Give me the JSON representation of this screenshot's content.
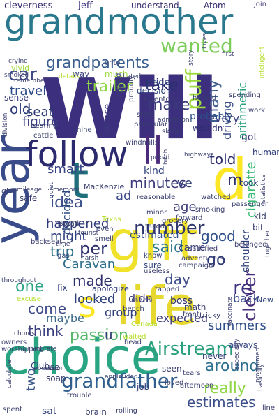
{
  "cloud": {
    "words": [
      {
        "text": "Will",
        "color": "#3b2f7e"
      },
      {
        "text": "grandmother",
        "color": "#2a788e"
      },
      {
        "text": "year",
        "color": "#3a4b8a"
      },
      {
        "text": "choice",
        "color": "#2aa583"
      },
      {
        "text": "life",
        "color": "#e6d82f"
      },
      {
        "text": "gift",
        "color": "#f0e12a"
      },
      {
        "text": "follow",
        "color": "#2c2a6e"
      },
      {
        "text": "t",
        "color": "#1f6f7a"
      },
      {
        "text": "d",
        "color": "#fde725"
      },
      {
        "text": "ll",
        "color": "#4b2a7b"
      },
      {
        "text": "s",
        "color": "#fde725"
      },
      {
        "text": "number",
        "color": "#30376f"
      },
      {
        "text": "grandfather",
        "color": "#2f5f8e"
      },
      {
        "text": "Airstream",
        "color": "#2aa07e"
      },
      {
        "text": "wanted",
        "color": "#7ccd5a"
      },
      {
        "text": "car",
        "color": "#3f4a85"
      },
      {
        "text": "grandparents",
        "color": "#3a5f8e"
      },
      {
        "text": "per",
        "color": "#2d2f6e"
      },
      {
        "text": "re",
        "color": "#3d3480"
      },
      {
        "text": "passion",
        "color": "#57b86a"
      },
      {
        "text": "idea",
        "color": "#3b4f8a"
      },
      {
        "text": "smart",
        "color": "#3a4586"
      },
      {
        "text": "made",
        "color": "#30306e"
      },
      {
        "text": "said",
        "color": "#2d7a8e"
      },
      {
        "text": "come",
        "color": "#3f4a8a"
      },
      {
        "text": "think",
        "color": "#3b3f7e"
      },
      {
        "text": "puff",
        "color": "#9bd93c"
      },
      {
        "text": "many",
        "color": "#3d5f8e"
      },
      {
        "text": "trailer",
        "color": "#8ed644"
      },
      {
        "text": "make",
        "color": "#3a3c7a"
      },
      {
        "text": "take",
        "color": "#2b2f6e"
      },
      {
        "text": "figure",
        "color": "#3b4080"
      },
      {
        "text": "one",
        "color": "#2aa583"
      },
      {
        "text": "minutes",
        "color": "#3b3a7a"
      },
      {
        "text": "cigarette",
        "color": "#3cbc75"
      },
      {
        "text": "clever",
        "color": "#472e7a"
      },
      {
        "text": "go",
        "color": "#2d3a78"
      },
      {
        "text": "two",
        "color": "#3d5a8a"
      },
      {
        "text": "really",
        "color": "#8ed644"
      },
      {
        "text": "around",
        "color": "#2d6f8e"
      },
      {
        "text": "summers",
        "color": "#2f4f8a"
      },
      {
        "text": "estimates",
        "color": "#3d4f8a"
      },
      {
        "text": "travel",
        "color": "#2d4a88"
      },
      {
        "text": "old",
        "color": "#2d3a78"
      },
      {
        "text": "seat",
        "color": "#2b3a70"
      },
      {
        "text": "happened",
        "color": "#2f3a78"
      },
      {
        "text": "might",
        "color": "#2f4080"
      },
      {
        "text": "trip",
        "color": "#2d6f8a"
      },
      {
        "text": "Caravan",
        "color": "#2f6f8e"
      },
      {
        "text": "looked",
        "color": "#2d3f7a"
      },
      {
        "text": "day",
        "color": "#3a4a88"
      },
      {
        "text": "told",
        "color": "#2d2f6e"
      },
      {
        "text": "age",
        "color": "#3b3a7a"
      },
      {
        "text": "good",
        "color": "#2f4f8a"
      },
      {
        "text": "driving",
        "color": "#3d5088"
      },
      {
        "text": "arithmetic",
        "color": "#2aa07e"
      },
      {
        "text": "every",
        "color": "#3d3f80"
      },
      {
        "text": "estimated",
        "color": "#2f4f8a"
      },
      {
        "text": "shoulder",
        "color": "#2d3f7a"
      },
      {
        "text": "decided",
        "color": "#2d4a80"
      },
      {
        "text": "didn",
        "color": "#3f3a7e"
      },
      {
        "text": "back",
        "color": "#3d4f8a"
      },
      {
        "text": "group",
        "color": "#2f3f7a"
      },
      {
        "text": "maybe",
        "color": "#3d6a8a"
      },
      {
        "text": "expected",
        "color": "#3b3a7a"
      },
      {
        "text": "cleverness",
        "color": "#3a2f6e"
      },
      {
        "text": "Jeff",
        "color": "#3b2f7a"
      },
      {
        "text": "understand",
        "color": "#3a2f6e"
      },
      {
        "text": "Atom",
        "color": "#3a2f6e"
      },
      {
        "text": "join",
        "color": "#4a3f7e"
      },
      {
        "text": "crying",
        "color": "#3a3f6e"
      },
      {
        "text": "vivid",
        "color": "#9dd93b"
      },
      {
        "text": "way",
        "color": "#3b4080"
      },
      {
        "text": "much",
        "color": "#9dd93b"
      },
      {
        "text": "onto",
        "color": "#4a4f7e"
      },
      {
        "text": "pride",
        "color": "#2d3f7a"
      },
      {
        "text": "decision",
        "color": "#2d3f7a"
      },
      {
        "text": "inventor",
        "color": "#3a3f6e"
      },
      {
        "text": "start",
        "color": "#3a3f6e"
      },
      {
        "text": "hated",
        "color": "#3a3f6e"
      },
      {
        "text": "details",
        "color": "#b5de2b"
      },
      {
        "text": "smoked",
        "color": "#4a4f7e"
      },
      {
        "text": "sense",
        "color": "#3b4080"
      },
      {
        "text": "kind",
        "color": "#2d3f7a"
      },
      {
        "text": "MacKenzie",
        "color": "#3a3f6e"
      },
      {
        "text": "ad",
        "color": "#3b4a8a"
      },
      {
        "text": "silence",
        "color": "#3b3a7a"
      },
      {
        "text": "probably",
        "color": "#2d4f88"
      },
      {
        "text": "wouldn",
        "color": "#2d2f6e"
      },
      {
        "text": "got",
        "color": "#3d3a78"
      },
      {
        "text": "human",
        "color": "#2d3a78"
      },
      {
        "text": "took",
        "color": "#2d3f7a"
      },
      {
        "text": "kid",
        "color": "#3a3f6e"
      },
      {
        "text": "bit",
        "color": "#3a3f6e"
      },
      {
        "text": "ve",
        "color": "#2d3a78"
      },
      {
        "text": "m",
        "color": "#2b2f6e"
      },
      {
        "text": "u",
        "color": "#3b3a7a"
      },
      {
        "text": "came",
        "color": "#3b3f7a"
      },
      {
        "text": "sure",
        "color": "#2d3f7a"
      },
      {
        "text": "know",
        "color": "#2d3a70"
      },
      {
        "text": "useless",
        "color": "#3a3f6e"
      },
      {
        "text": "boss",
        "color": "#2d2f6e"
      },
      {
        "text": "New",
        "color": "#2d3f7a"
      },
      {
        "text": "never",
        "color": "#2d3a78"
      },
      {
        "text": "always",
        "color": "#3b4a88"
      },
      {
        "text": "seen",
        "color": "#3a3f6e"
      },
      {
        "text": "loved",
        "color": "#3a3f6e"
      },
      {
        "text": "job",
        "color": "#2d3a78"
      },
      {
        "text": "sat",
        "color": "#2d3f7a"
      },
      {
        "text": "brain",
        "color": "#3a3f6e"
      },
      {
        "text": "rolling",
        "color": "#3a3f6e"
      },
      {
        "text": "apologize",
        "color": "#2d3a78"
      },
      {
        "text": "gas",
        "color": "#2d3f7a"
      },
      {
        "text": "fix",
        "color": "#2d3a78"
      },
      {
        "text": "ranch",
        "color": "#3a3f6e"
      },
      {
        "text": "bench",
        "color": "#3a3f6e"
      },
      {
        "text": "math",
        "color": "#3a3f6e"
      },
      {
        "text": "tricky",
        "color": "#3a3f6e"
      },
      {
        "text": "front",
        "color": "#3a3f6e"
      },
      {
        "text": "head",
        "color": "#3a3f6e"
      },
      {
        "text": "waited",
        "color": "#b5de2b"
      },
      {
        "text": "Canada",
        "color": "#b5de2b"
      },
      {
        "text": "Club",
        "color": "#2d3a78"
      },
      {
        "text": "soap",
        "color": "#3a3f6e"
      },
      {
        "text": "use",
        "color": "#3a3f6e"
      },
      {
        "text": "spent",
        "color": "#3a3f6e"
      },
      {
        "text": "trouble",
        "color": "#3a3f6e"
      },
      {
        "text": "line",
        "color": "#3a3f6e"
      },
      {
        "text": "even",
        "color": "#3a3f6e"
      },
      {
        "text": "smell",
        "color": "#3a3f6e"
      },
      {
        "text": "Texas",
        "color": "#b5de2b"
      },
      {
        "text": "Instead",
        "color": "#3a3f6e"
      },
      {
        "text": "backseat",
        "color": "#3a3f6e"
      },
      {
        "text": "safe",
        "color": "#3a3f6e"
      },
      {
        "text": "give",
        "color": "#3a3f6e"
      },
      {
        "text": "mileage",
        "color": "#3a3f6e"
      },
      {
        "text": "memory",
        "color": "#3a3f6e"
      },
      {
        "text": "quiet",
        "color": "#2d3a78"
      },
      {
        "text": "excuse",
        "color": "#b5de2b"
      },
      {
        "text": "owners",
        "color": "#3a3f6e"
      },
      {
        "text": "worshipped",
        "color": "#3a3f6e"
      },
      {
        "text": "chores",
        "color": "#3a3f6e"
      },
      {
        "text": "operas",
        "color": "#3a3f6e"
      },
      {
        "text": "hearing",
        "color": "#3a3f6e"
      },
      {
        "text": "cattle",
        "color": "#3a3f6e"
      },
      {
        "text": "nine",
        "color": "#3a3f6e"
      },
      {
        "text": "windmills",
        "color": "#3a3f6e"
      },
      {
        "text": "skills",
        "color": "#3a3f6e"
      },
      {
        "text": "particular",
        "color": "#3a3f6e"
      },
      {
        "text": "opened",
        "color": "#3a3f6e"
      },
      {
        "text": "proudly",
        "color": "#3a3f6e"
      },
      {
        "text": "helped",
        "color": "#3a3f6e"
      },
      {
        "text": "spending",
        "color": "#3a3f6e"
      },
      {
        "text": "work",
        "color": "#3a3f6e"
      },
      {
        "text": "statistics",
        "color": "#3a3f6e"
      },
      {
        "text": "smoking",
        "color": "#3a3f6e"
      },
      {
        "text": "passenger",
        "color": "#3a3f6e"
      },
      {
        "text": "watched",
        "color": "#3a3f6e"
      },
      {
        "text": "satisfied",
        "color": "#3a3f6e"
      },
      {
        "text": "belonged",
        "color": "#3a3f6e"
      },
      {
        "text": "grocery",
        "color": "#3a3f6e"
      },
      {
        "text": "taken",
        "color": "#3a3f6e"
      },
      {
        "text": "forward",
        "color": "#3a3f6e"
      },
      {
        "text": "minor",
        "color": "#3a3f6e"
      },
      {
        "text": "adventurers",
        "color": "#3a3f6e"
      },
      {
        "text": "campaign",
        "color": "#3a3f6e"
      },
      {
        "text": "tapped",
        "color": "#3a3f6e"
      },
      {
        "text": "tears",
        "color": "#3a3f6e"
      },
      {
        "text": "afternoon",
        "color": "#3a3f6e"
      },
      {
        "text": "vaccinate",
        "color": "#3a3f6e"
      },
      {
        "text": "especially",
        "color": "#3a3f6e"
      },
      {
        "text": "applauded",
        "color": "#3a3f6e"
      },
      {
        "text": "door",
        "color": "#3a3f6e"
      },
      {
        "text": "calculate",
        "color": "#3a3f6e"
      },
      {
        "text": "basically",
        "color": "#3a3f6e"
      },
      {
        "text": "proclaimed",
        "color": "#3a3f6e"
      },
      {
        "text": "admission",
        "color": "#3a3f6e"
      },
      {
        "text": "poked",
        "color": "#3a3f6e"
      },
      {
        "text": "hitch",
        "color": "#3a3f6e"
      },
      {
        "text": "highways",
        "color": "#3a3f6e"
      },
      {
        "text": "Lives",
        "color": "#3a3f6e"
      },
      {
        "text": "first",
        "color": "#3a3f6e"
      },
      {
        "text": "intelligent",
        "color": "#b5de2b"
      },
      {
        "text": "together",
        "color": "#3a3f6e"
      },
      {
        "text": "reasonable",
        "color": "#3a3f6e"
      },
      {
        "text": "thingrate",
        "color": "#3a3f6e"
      },
      {
        "text": "harsh",
        "color": "#3a3f6e"
      },
      {
        "text": "remember",
        "color": "#3a3f6e"
      },
      {
        "text": "story",
        "color": "#3a3f6e"
      },
      {
        "text": "division",
        "color": "#3a3f6e"
      },
      {
        "text": "throughout",
        "color": "#3a3f6e"
      },
      {
        "text": "time",
        "color": "#3a3f6e"
      },
      {
        "text": "tourist",
        "color": "#3a3f6e"
      },
      {
        "text": "big",
        "color": "#3a3f6e"
      }
    ]
  }
}
